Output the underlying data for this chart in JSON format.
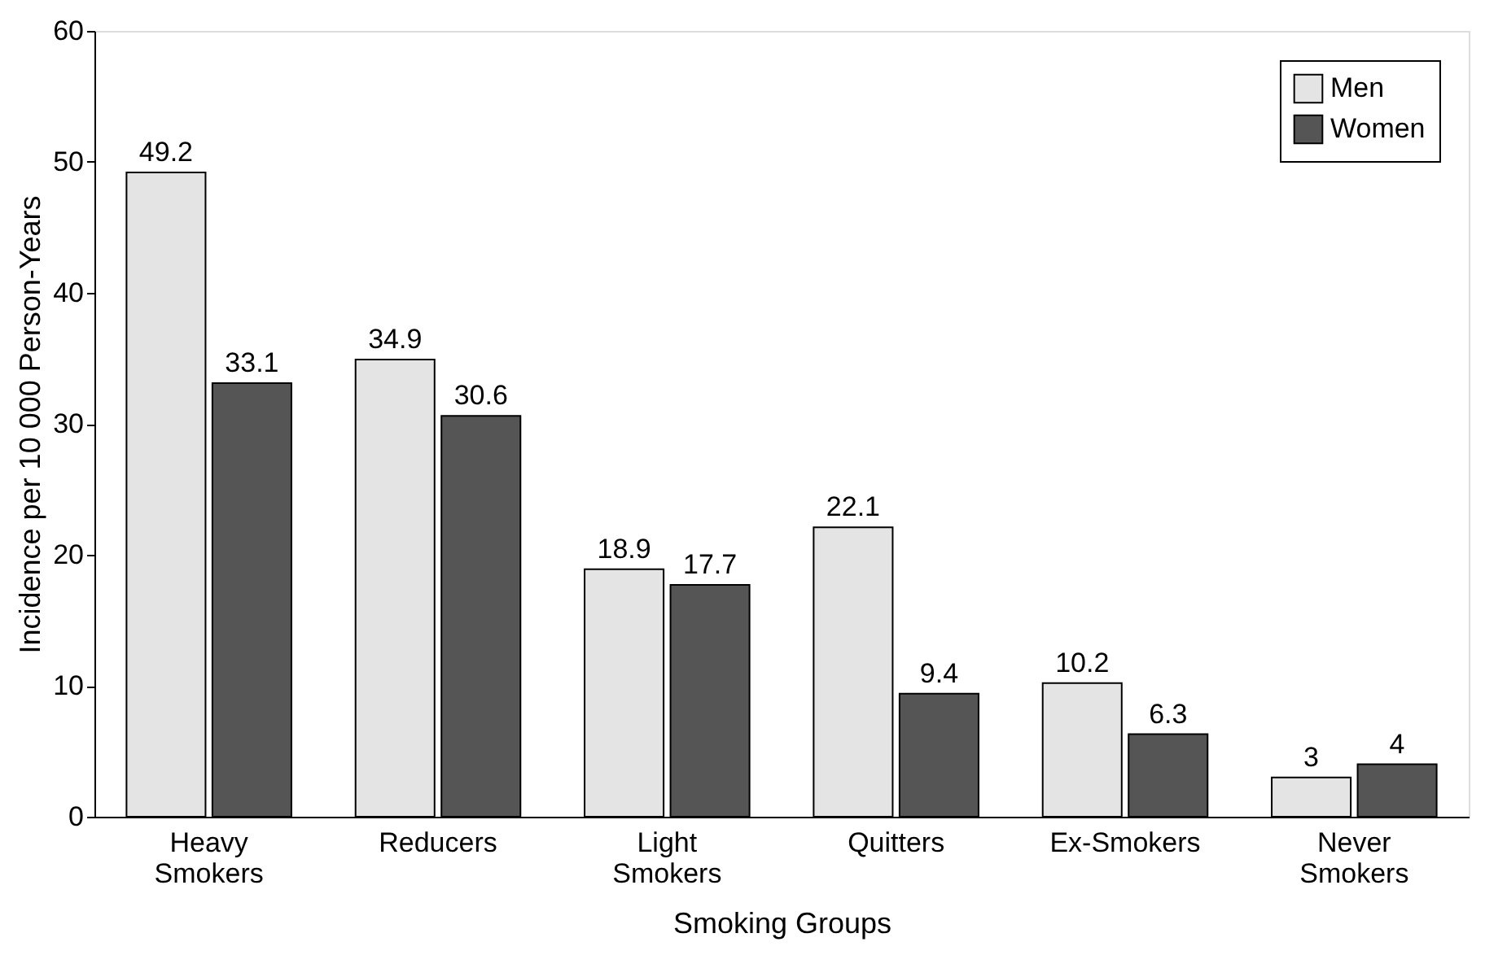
{
  "chart_data": {
    "type": "bar",
    "xlabel": "Smoking Groups",
    "ylabel": "Incidence per 10 000 Person-Years",
    "categories": [
      "Heavy Smokers",
      "Reducers",
      "Light Smokers",
      "Quitters",
      "Ex-Smokers",
      "Never Smokers"
    ],
    "series": [
      {
        "name": "Men",
        "color": "#e4e4e4",
        "values": [
          49.2,
          34.9,
          18.9,
          22.1,
          10.2,
          3
        ]
      },
      {
        "name": "Women",
        "color": "#555555",
        "values": [
          33.1,
          30.6,
          17.7,
          9.4,
          6.3,
          4
        ]
      }
    ],
    "ylim": [
      0,
      60
    ],
    "yticks": [
      0,
      10,
      20,
      30,
      40,
      50,
      60
    ],
    "grid": false,
    "legend": "top right",
    "data_labels": true
  }
}
